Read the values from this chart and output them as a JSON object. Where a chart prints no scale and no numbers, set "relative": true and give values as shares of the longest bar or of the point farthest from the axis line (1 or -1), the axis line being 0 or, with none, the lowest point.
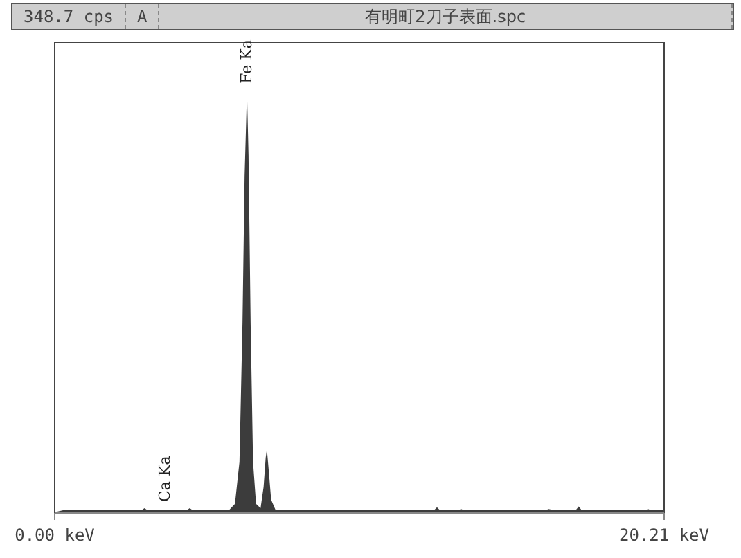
{
  "chart_data": {
    "type": "area",
    "title": "有明町2刀子表面.spc",
    "relative": true,
    "color": "#3c3c3c",
    "x": [
      0,
      0.3,
      2.9,
      3.0,
      3.1,
      3.69,
      4.4,
      4.5,
      4.6,
      5.8,
      6.0,
      6.15,
      6.25,
      6.32,
      6.4,
      6.45,
      6.52,
      6.6,
      6.7,
      6.85,
      6.95,
      7.02,
      7.06,
      7.12,
      7.2,
      7.35,
      12.6,
      12.7,
      12.8,
      13.4,
      13.5,
      13.6,
      16.3,
      16.4,
      16.6,
      17.3,
      17.4,
      17.5,
      19.6,
      19.7,
      19.8,
      20.21
    ],
    "values": [
      0,
      0.005,
      0.005,
      0.01,
      0.005,
      0.005,
      0.005,
      0.01,
      0.005,
      0.005,
      0.02,
      0.12,
      0.45,
      0.8,
      1.0,
      0.85,
      0.45,
      0.12,
      0.02,
      0.01,
      0.06,
      0.13,
      0.15,
      0.1,
      0.03,
      0.005,
      0.005,
      0.012,
      0.005,
      0.005,
      0.008,
      0.005,
      0.005,
      0.008,
      0.005,
      0.005,
      0.014,
      0.005,
      0.005,
      0.008,
      0.005,
      0.005
    ],
    "xlim": [
      0,
      20.21
    ],
    "xticks": [
      {
        "value": 0,
        "label": "0.00 keV"
      },
      {
        "value": 20.21,
        "label": "20.21 keV"
      }
    ],
    "annotations": [
      "348.7 cps",
      "A",
      {
        "text": "Fe Ka",
        "x": 6.4,
        "y": 1.0
      },
      {
        "text": "Ca Ka",
        "x": 3.69,
        "y": 0.005
      }
    ]
  }
}
